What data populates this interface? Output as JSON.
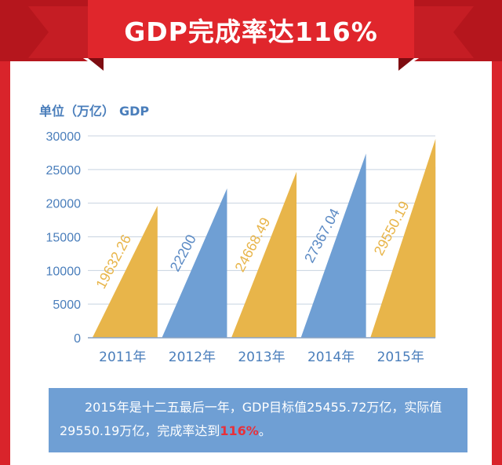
{
  "banner": {
    "title": "GDP完成率达116%",
    "colors": {
      "ribbon": "#d9242b",
      "ribbon_dark": "#a8141b",
      "title_text": "#ffffff"
    }
  },
  "unit_label": "单位（万亿）",
  "unit_metric": "GDP",
  "chart_data": {
    "type": "bar",
    "categories": [
      "2011年",
      "2012年",
      "2013年",
      "2014年",
      "2015年"
    ],
    "values": [
      19632.26,
      22200,
      24668.49,
      27367.04,
      29550.19
    ],
    "value_labels": [
      "19632.26",
      "22200",
      "24668.49",
      "27367.04",
      "29550.19"
    ],
    "bar_colors": [
      "#e8b54a",
      "#6f9fd4",
      "#e8b54a",
      "#6f9fd4",
      "#e8b54a"
    ],
    "label_colors": [
      "#e8b54a",
      "#5b8ac4",
      "#e8b54a",
      "#5b8ac4",
      "#e8b54a"
    ],
    "target": {
      "category": "2015年",
      "value": 25455.72,
      "label": "目标值25455.72",
      "color": "#dcdcdc"
    },
    "yticks": [
      0,
      5000,
      10000,
      15000,
      20000,
      25000,
      30000
    ],
    "ylim": [
      0,
      30000
    ],
    "grid": true,
    "axis_color": "#4a7ebb",
    "grid_color": "#c8d3e0"
  },
  "summary": {
    "text_before": "2015年是十二五最后一年，GDP目标值25455.72万亿，实际值29550.19万亿，完成率达到",
    "highlight": "116%",
    "text_after": "。"
  }
}
